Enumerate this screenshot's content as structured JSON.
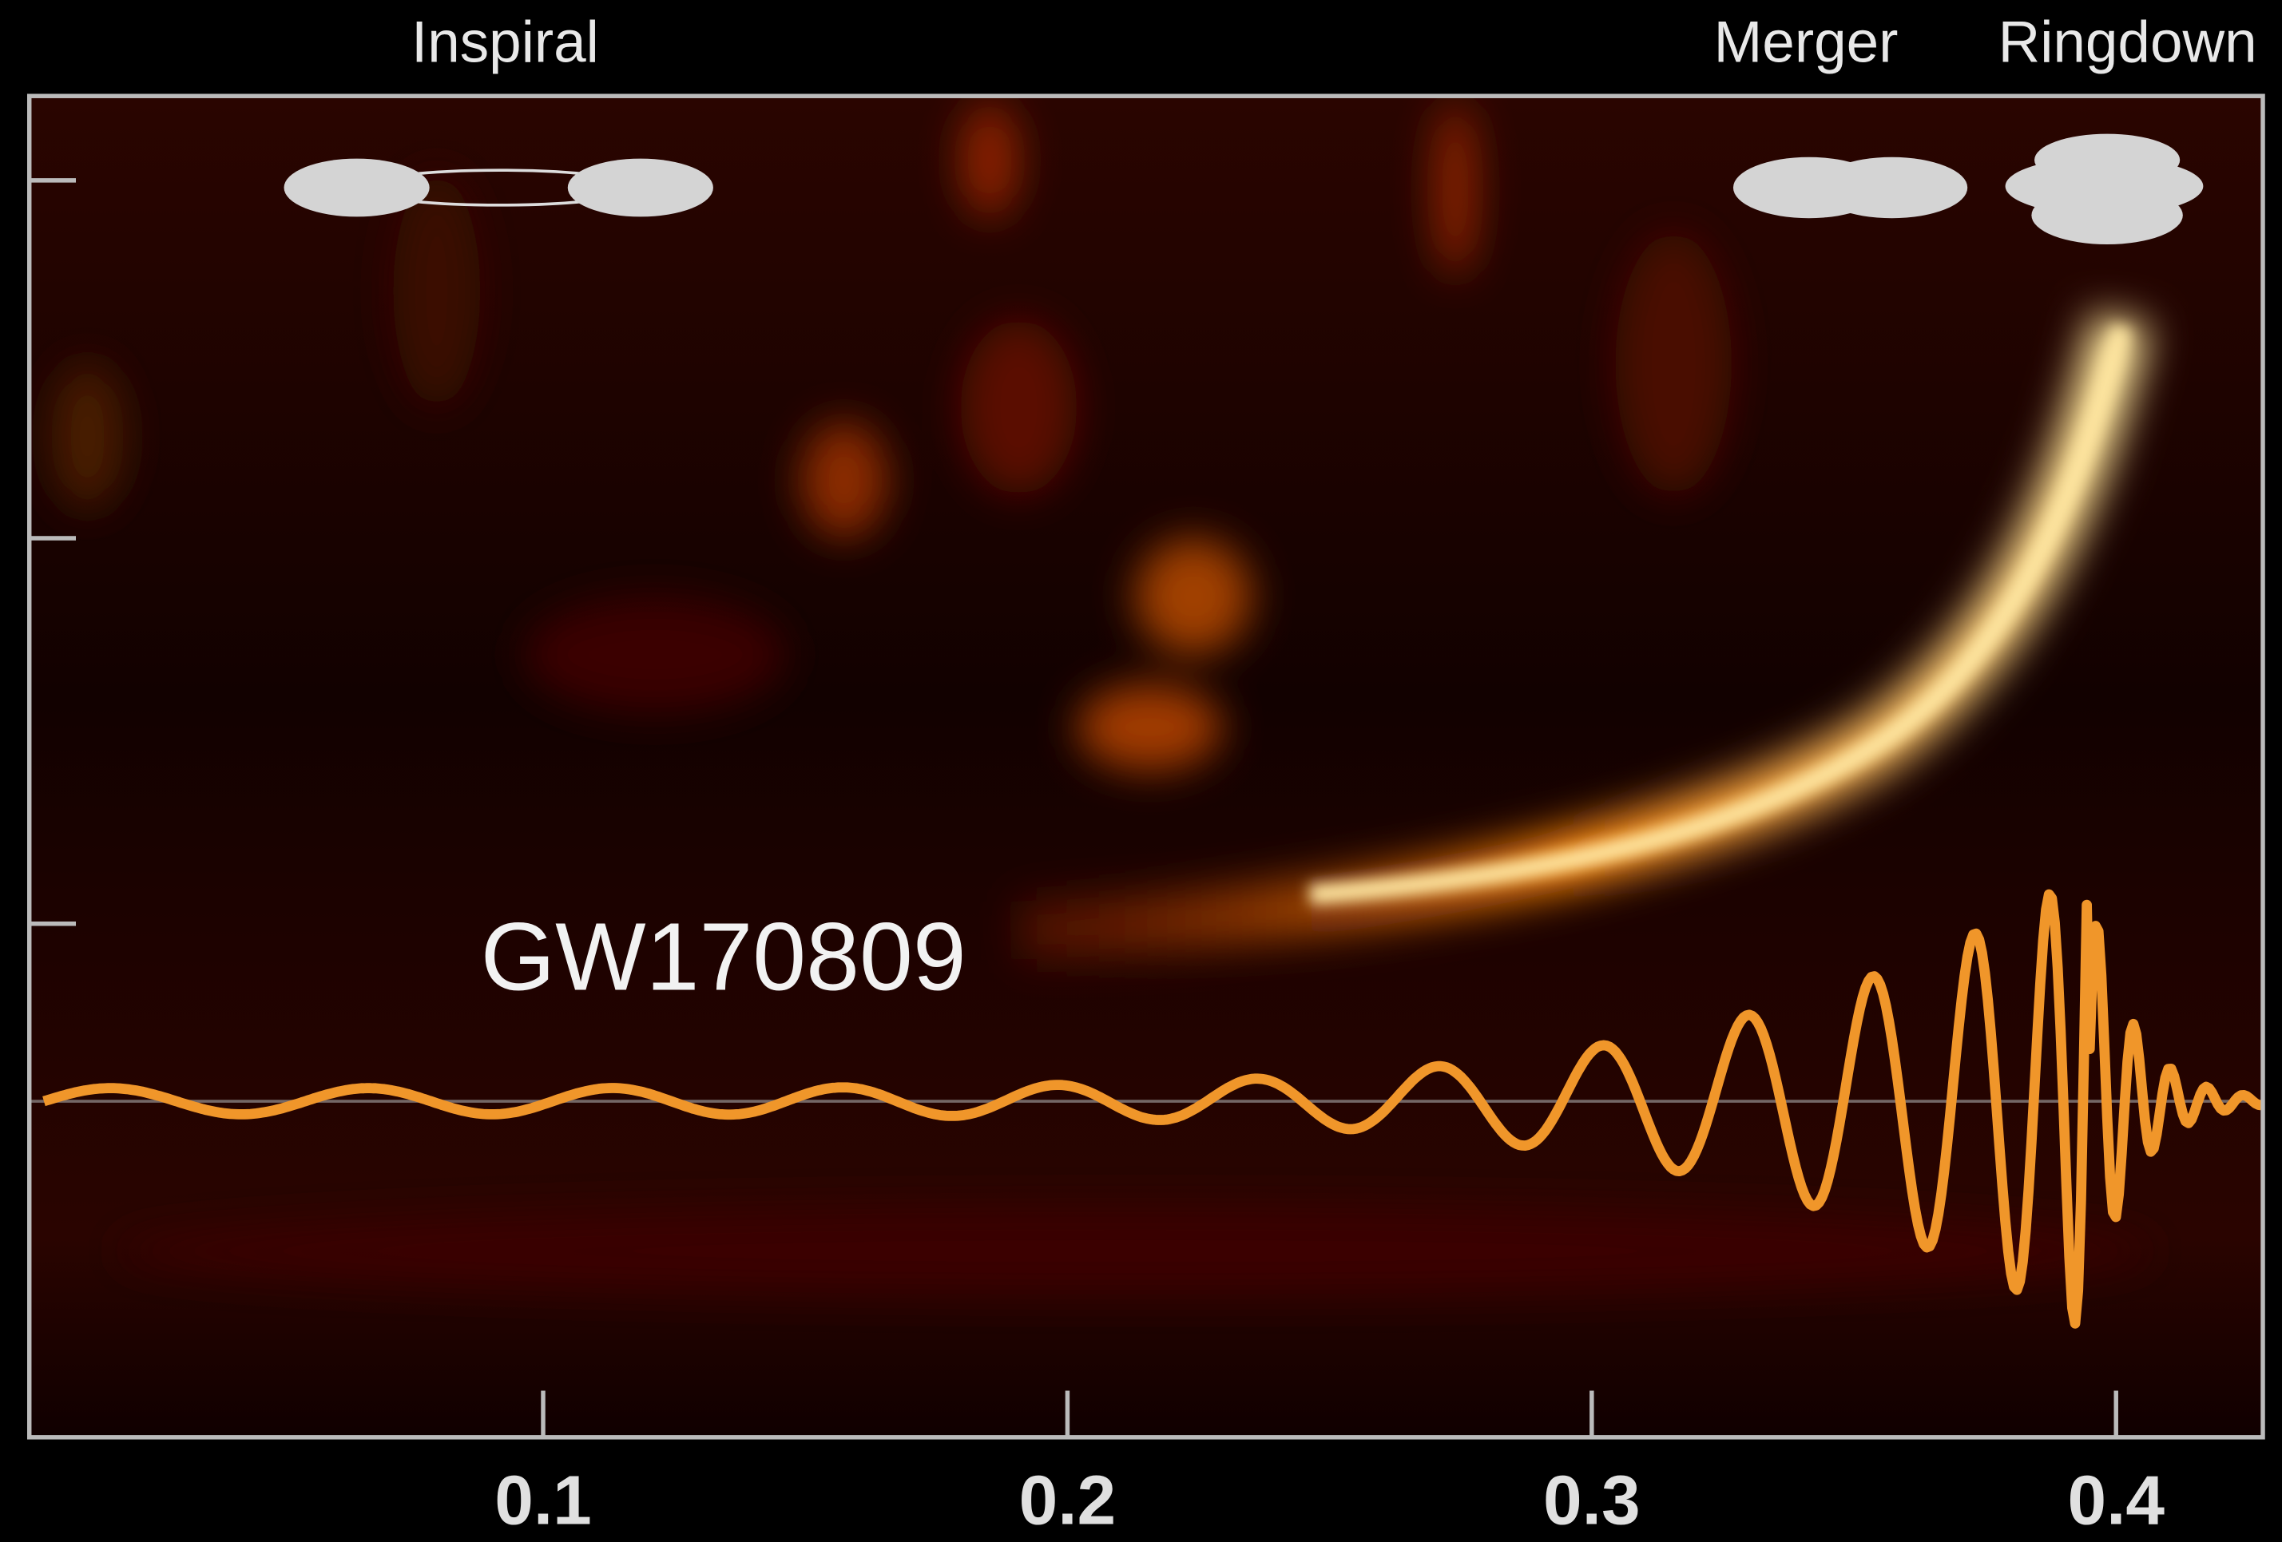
{
  "chart_data": {
    "type": "spectrogram",
    "annotations": [
      "Inspiral",
      "Merger",
      "Ringdown"
    ],
    "label": "GW170809",
    "xlim": [
      0.002,
      0.428
    ],
    "xticks": [
      0.1,
      0.2,
      0.3,
      0.4
    ]
  }
}
